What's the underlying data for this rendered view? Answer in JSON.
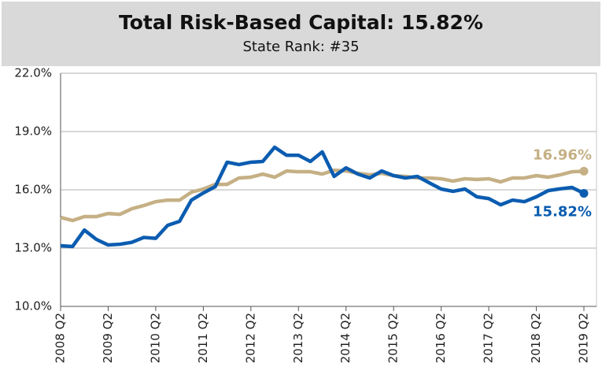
{
  "chart_data": {
    "type": "line",
    "title": "Total Risk-Based Capital: 15.82%",
    "subtitle": "State Rank: #35",
    "categories": [
      "2008 Q2",
      null,
      null,
      null,
      "2009 Q2",
      null,
      null,
      null,
      "2010 Q2",
      null,
      null,
      null,
      "2011 Q2",
      null,
      null,
      null,
      "2012 Q2",
      null,
      null,
      null,
      "2013 Q2",
      null,
      null,
      null,
      "2014 Q2",
      null,
      null,
      null,
      "2015 Q2",
      null,
      null,
      null,
      "2016 Q2",
      null,
      null,
      null,
      "2017 Q2",
      null,
      null,
      null,
      "2018 Q2",
      null,
      null,
      null,
      "2019 Q2"
    ],
    "series": [
      {
        "color": "#c5b085",
        "values": [
          14.58,
          14.42,
          14.62,
          14.62,
          14.78,
          14.74,
          15.03,
          15.19,
          15.39,
          15.47,
          15.47,
          15.88,
          16.04,
          16.28,
          16.28,
          16.61,
          16.65,
          16.81,
          16.65,
          16.97,
          16.93,
          16.93,
          16.81,
          17.01,
          16.97,
          16.85,
          16.77,
          16.85,
          16.73,
          16.69,
          16.61,
          16.61,
          16.57,
          16.45,
          16.57,
          16.53,
          16.57,
          16.41,
          16.61,
          16.61,
          16.73,
          16.65,
          16.77,
          16.93,
          16.96
        ],
        "value_labels": [
          null,
          null,
          null,
          null,
          null,
          null,
          null,
          null,
          null,
          null,
          null,
          null,
          null,
          null,
          null,
          null,
          null,
          null,
          null,
          null,
          null,
          null,
          null,
          null,
          null,
          null,
          null,
          null,
          null,
          null,
          null,
          null,
          null,
          null,
          null,
          null,
          null,
          null,
          null,
          null,
          null,
          null,
          null,
          null,
          "16.96%"
        ]
      },
      {
        "color": "#0b5cb0",
        "values": [
          13.12,
          13.08,
          13.93,
          13.45,
          13.16,
          13.2,
          13.3,
          13.55,
          13.5,
          14.17,
          14.38,
          15.47,
          15.84,
          16.16,
          17.42,
          17.3,
          17.42,
          17.46,
          18.19,
          17.78,
          17.78,
          17.46,
          17.95,
          16.69,
          17.13,
          16.81,
          16.61,
          16.97,
          16.73,
          16.61,
          16.69,
          16.36,
          16.04,
          15.92,
          16.04,
          15.64,
          15.55,
          15.23,
          15.47,
          15.39,
          15.64,
          15.96,
          16.05,
          16.12,
          15.82
        ],
        "value_labels": [
          null,
          null,
          null,
          null,
          null,
          null,
          null,
          null,
          null,
          null,
          null,
          null,
          null,
          null,
          null,
          null,
          null,
          null,
          null,
          null,
          null,
          null,
          null,
          null,
          null,
          null,
          null,
          null,
          null,
          null,
          null,
          null,
          null,
          null,
          null,
          null,
          null,
          null,
          null,
          null,
          null,
          null,
          null,
          null,
          "15.82%"
        ]
      }
    ],
    "ylim": [
      10,
      22
    ],
    "yticks": [
      {
        "value": 10,
        "label": "10.0%"
      },
      {
        "value": 13,
        "label": "13.0%"
      },
      {
        "value": 16,
        "label": "16.0%"
      },
      {
        "value": 19,
        "label": "19.0%"
      },
      {
        "value": 22,
        "label": "22.0%"
      }
    ],
    "grid": true
  }
}
